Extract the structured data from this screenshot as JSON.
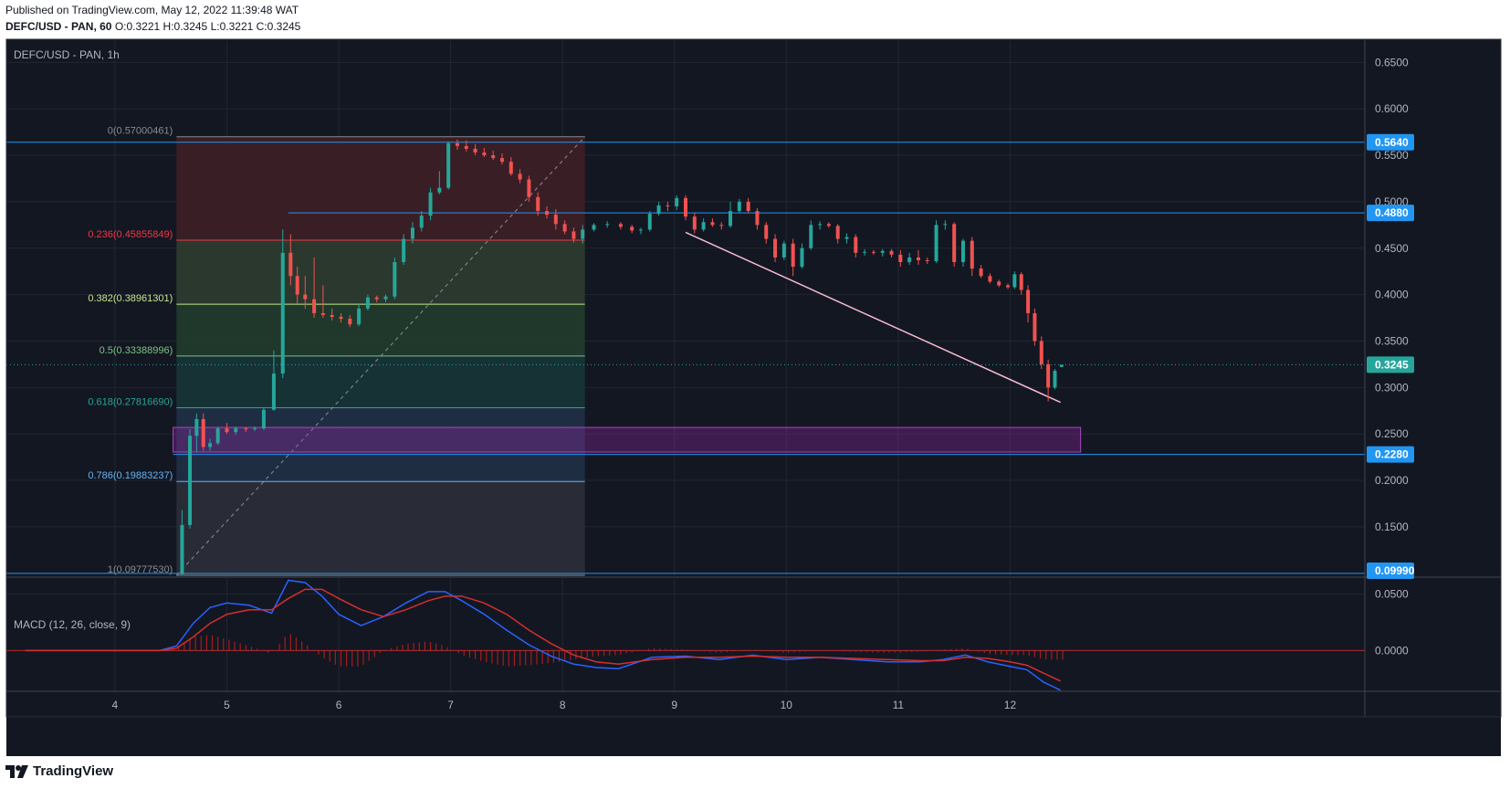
{
  "header": {
    "published": "Published on TradingView.com, May 12, 2022 11:39:48 WAT",
    "ohlc_label": "DEFC/USD - PAN, 60",
    "o": "O:0.3221",
    "h": "H:0.3245",
    "l": "L:0.3221",
    "c": "C:0.3245"
  },
  "logo": {
    "text": "TradingView",
    "icon": "tradingview-logo-icon"
  },
  "colors": {
    "bg": "#131722",
    "up": "#26a69a",
    "down": "#ef5350",
    "axis_text": "#b2b5be",
    "macd": "#2962ff",
    "signal": "#d32f2f",
    "price_tag": "#2196f3"
  },
  "chart_data": {
    "type": "candlestick",
    "title": "DEFC/USD - PAN, 1h",
    "x_ticks": [
      "4",
      "5",
      "6",
      "7",
      "8",
      "9",
      "10",
      "11",
      "12"
    ],
    "x_tick_days": [
      4,
      5,
      6,
      7,
      8,
      9,
      10,
      11,
      12
    ],
    "x_range_days": [
      3.03,
      15.17
    ],
    "ylim": [
      0.0978,
      0.6749
    ],
    "y_ticks": [
      "0.6500",
      "0.6000",
      "0.5500",
      "0.5000",
      "0.4500",
      "0.4000",
      "0.3500",
      "0.3000",
      "0.2500",
      "0.2000",
      "0.1500"
    ],
    "y_tick_values": [
      0.65,
      0.6,
      0.55,
      0.5,
      0.45,
      0.4,
      0.35,
      0.3,
      0.25,
      0.2,
      0.15
    ],
    "price_tags": [
      {
        "label": "0.5640",
        "value": 0.564
      },
      {
        "label": "0.4880",
        "value": 0.488
      },
      {
        "label": "0.3245",
        "value": 0.3245,
        "current": true
      },
      {
        "label": "0.2280",
        "value": 0.228
      },
      {
        "label": "0.09990",
        "value": 0.0999
      }
    ],
    "fibonacci": {
      "start_day": 4.55,
      "end_day": 8.2,
      "levels": [
        {
          "label": "0(0.57000461)",
          "value": 0.57000461,
          "color": "#8a8a8a",
          "fill": "#3b1f27"
        },
        {
          "label": "0.236(0.45855849)",
          "value": 0.45855849,
          "color": "#f23645",
          "fill": "#2c3a2f"
        },
        {
          "label": "0.382(0.38961301)",
          "value": 0.38961301,
          "color": "#c4e88a",
          "fill": "#203a2c"
        },
        {
          "label": "0.5(0.33388996)",
          "value": 0.33388996,
          "color": "#7bc47f",
          "fill": "#173436"
        },
        {
          "label": "0.618(0.27816690)",
          "value": 0.2781669,
          "color": "#26a69a",
          "fill": "#1f2e44"
        },
        {
          "label": "0.786(0.19883237)",
          "value": 0.19883237,
          "color": "#64b5f6",
          "fill": "#2a2d39"
        },
        {
          "label": "1(0.09777530)",
          "value": 0.0977753,
          "color": "#8a8a8a",
          "fill": null
        }
      ]
    },
    "zone": {
      "from_day": 4.52,
      "to_day": 12.63,
      "low": 0.2305,
      "high": 0.257
    },
    "trendline": {
      "from": [
        9.1,
        0.467
      ],
      "to": [
        12.45,
        0.284
      ]
    },
    "candles_ohlc": [
      [
        4.6,
        0.099,
        0.168,
        0.099,
        0.152
      ],
      [
        4.67,
        0.152,
        0.255,
        0.148,
        0.248
      ],
      [
        4.73,
        0.248,
        0.272,
        0.231,
        0.266
      ],
      [
        4.79,
        0.266,
        0.272,
        0.232,
        0.236
      ],
      [
        4.85,
        0.236,
        0.245,
        0.232,
        0.24
      ],
      [
        4.92,
        0.24,
        0.258,
        0.238,
        0.256
      ],
      [
        5.0,
        0.256,
        0.262,
        0.25,
        0.252
      ],
      [
        5.08,
        0.252,
        0.258,
        0.249,
        0.256
      ],
      [
        5.17,
        0.256,
        0.257,
        0.252,
        0.255
      ],
      [
        5.25,
        0.255,
        0.258,
        0.253,
        0.256
      ],
      [
        5.33,
        0.256,
        0.278,
        0.254,
        0.276
      ],
      [
        5.42,
        0.276,
        0.34,
        0.275,
        0.315
      ],
      [
        5.5,
        0.315,
        0.47,
        0.31,
        0.445
      ],
      [
        5.57,
        0.445,
        0.465,
        0.41,
        0.42
      ],
      [
        5.63,
        0.42,
        0.43,
        0.39,
        0.4
      ],
      [
        5.7,
        0.4,
        0.42,
        0.385,
        0.395
      ],
      [
        5.78,
        0.395,
        0.44,
        0.375,
        0.38
      ],
      [
        5.86,
        0.38,
        0.41,
        0.375,
        0.378
      ],
      [
        5.94,
        0.378,
        0.385,
        0.372,
        0.376
      ],
      [
        6.02,
        0.376,
        0.38,
        0.37,
        0.374
      ],
      [
        6.1,
        0.374,
        0.378,
        0.365,
        0.368
      ],
      [
        6.18,
        0.368,
        0.39,
        0.366,
        0.385
      ],
      [
        6.26,
        0.385,
        0.4,
        0.383,
        0.397
      ],
      [
        6.34,
        0.397,
        0.399,
        0.392,
        0.395
      ],
      [
        6.42,
        0.395,
        0.4,
        0.392,
        0.398
      ],
      [
        6.5,
        0.398,
        0.44,
        0.395,
        0.435
      ],
      [
        6.58,
        0.435,
        0.465,
        0.432,
        0.46
      ],
      [
        6.66,
        0.46,
        0.478,
        0.455,
        0.472
      ],
      [
        6.74,
        0.472,
        0.49,
        0.468,
        0.485
      ],
      [
        6.82,
        0.485,
        0.515,
        0.48,
        0.51
      ],
      [
        6.9,
        0.51,
        0.533,
        0.508,
        0.515
      ],
      [
        6.98,
        0.515,
        0.565,
        0.513,
        0.563
      ],
      [
        7.06,
        0.563,
        0.567,
        0.556,
        0.56
      ],
      [
        7.14,
        0.56,
        0.566,
        0.554,
        0.557
      ],
      [
        7.22,
        0.557,
        0.562,
        0.55,
        0.553
      ],
      [
        7.3,
        0.553,
        0.558,
        0.548,
        0.55
      ],
      [
        7.38,
        0.55,
        0.555,
        0.545,
        0.547
      ],
      [
        7.46,
        0.547,
        0.552,
        0.54,
        0.543
      ],
      [
        7.54,
        0.543,
        0.548,
        0.528,
        0.53
      ],
      [
        7.62,
        0.53,
        0.535,
        0.52,
        0.524
      ],
      [
        7.7,
        0.524,
        0.528,
        0.5,
        0.505
      ],
      [
        7.78,
        0.505,
        0.51,
        0.485,
        0.49
      ],
      [
        7.86,
        0.49,
        0.495,
        0.482,
        0.486
      ],
      [
        7.94,
        0.486,
        0.492,
        0.47,
        0.476
      ],
      [
        8.02,
        0.476,
        0.48,
        0.465,
        0.468
      ],
      [
        8.1,
        0.468,
        0.472,
        0.456,
        0.46
      ],
      [
        8.18,
        0.46,
        0.475,
        0.455,
        0.47
      ],
      [
        8.28,
        0.47,
        0.477,
        0.468,
        0.475
      ],
      [
        8.4,
        0.475,
        0.479,
        0.472,
        0.476
      ],
      [
        8.52,
        0.476,
        0.478,
        0.47,
        0.473
      ],
      [
        8.62,
        0.473,
        0.475,
        0.466,
        0.469
      ],
      [
        8.7,
        0.469,
        0.472,
        0.465,
        0.47
      ],
      [
        8.78,
        0.47,
        0.49,
        0.468,
        0.487
      ],
      [
        8.86,
        0.487,
        0.5,
        0.485,
        0.496
      ],
      [
        8.94,
        0.496,
        0.5,
        0.49,
        0.495
      ],
      [
        9.02,
        0.495,
        0.507,
        0.491,
        0.504
      ],
      [
        9.1,
        0.504,
        0.507,
        0.48,
        0.484
      ],
      [
        9.18,
        0.484,
        0.488,
        0.466,
        0.47
      ],
      [
        9.26,
        0.47,
        0.482,
        0.468,
        0.478
      ],
      [
        9.34,
        0.478,
        0.482,
        0.473,
        0.475
      ],
      [
        9.42,
        0.475,
        0.478,
        0.47,
        0.474
      ],
      [
        9.5,
        0.474,
        0.5,
        0.472,
        0.49
      ],
      [
        9.58,
        0.49,
        0.503,
        0.488,
        0.5
      ],
      [
        9.66,
        0.5,
        0.504,
        0.488,
        0.49
      ],
      [
        9.74,
        0.49,
        0.493,
        0.47,
        0.475
      ],
      [
        9.82,
        0.475,
        0.478,
        0.455,
        0.46
      ],
      [
        9.9,
        0.46,
        0.465,
        0.435,
        0.44
      ],
      [
        9.98,
        0.44,
        0.458,
        0.437,
        0.455
      ],
      [
        10.06,
        0.455,
        0.46,
        0.42,
        0.43
      ],
      [
        10.14,
        0.43,
        0.455,
        0.428,
        0.45
      ],
      [
        10.22,
        0.45,
        0.48,
        0.448,
        0.475
      ],
      [
        10.3,
        0.475,
        0.479,
        0.47,
        0.476
      ],
      [
        10.38,
        0.476,
        0.478,
        0.472,
        0.474
      ],
      [
        10.46,
        0.474,
        0.476,
        0.455,
        0.46
      ],
      [
        10.54,
        0.46,
        0.466,
        0.455,
        0.462
      ],
      [
        10.62,
        0.462,
        0.465,
        0.44,
        0.445
      ],
      [
        10.7,
        0.445,
        0.449,
        0.442,
        0.446
      ],
      [
        10.78,
        0.446,
        0.448,
        0.443,
        0.445
      ],
      [
        10.86,
        0.445,
        0.449,
        0.441,
        0.447
      ],
      [
        10.94,
        0.447,
        0.449,
        0.44,
        0.443
      ],
      [
        11.02,
        0.443,
        0.448,
        0.43,
        0.435
      ],
      [
        11.1,
        0.435,
        0.445,
        0.432,
        0.44
      ],
      [
        11.18,
        0.44,
        0.448,
        0.432,
        0.437
      ],
      [
        11.26,
        0.437,
        0.44,
        0.433,
        0.436
      ],
      [
        11.34,
        0.436,
        0.48,
        0.434,
        0.475
      ],
      [
        11.42,
        0.475,
        0.48,
        0.47,
        0.476
      ],
      [
        11.5,
        0.476,
        0.478,
        0.43,
        0.435
      ],
      [
        11.58,
        0.435,
        0.46,
        0.43,
        0.458
      ],
      [
        11.66,
        0.458,
        0.462,
        0.42,
        0.428
      ],
      [
        11.74,
        0.428,
        0.432,
        0.418,
        0.42
      ],
      [
        11.82,
        0.42,
        0.423,
        0.412,
        0.414
      ],
      [
        11.9,
        0.414,
        0.416,
        0.408,
        0.41
      ],
      [
        11.98,
        0.41,
        0.412,
        0.406,
        0.408
      ],
      [
        12.04,
        0.408,
        0.425,
        0.406,
        0.422
      ],
      [
        12.1,
        0.422,
        0.424,
        0.4,
        0.405
      ],
      [
        12.16,
        0.405,
        0.41,
        0.37,
        0.38
      ],
      [
        12.22,
        0.38,
        0.385,
        0.345,
        0.35
      ],
      [
        12.28,
        0.35,
        0.355,
        0.32,
        0.325
      ],
      [
        12.34,
        0.325,
        0.33,
        0.285,
        0.3
      ],
      [
        12.4,
        0.3,
        0.32,
        0.298,
        0.318
      ],
      [
        12.46,
        0.3221,
        0.3245,
        0.3221,
        0.3245
      ]
    ],
    "macd": {
      "label": "MACD (12, 26, close, 9)",
      "ylim": [
        -0.036,
        0.064
      ],
      "y_ticks": [
        "0.0500",
        "0.0000"
      ],
      "y_tick_values": [
        0.05,
        0.0
      ],
      "days": [
        3.2,
        4.4,
        4.55,
        4.7,
        4.85,
        5.0,
        5.2,
        5.4,
        5.55,
        5.7,
        5.85,
        6.0,
        6.2,
        6.4,
        6.6,
        6.8,
        6.95,
        7.1,
        7.3,
        7.5,
        7.7,
        7.9,
        8.1,
        8.3,
        8.5,
        8.8,
        9.1,
        9.4,
        9.7,
        10.0,
        10.3,
        10.6,
        10.9,
        11.2,
        11.4,
        11.6,
        11.8,
        12.0,
        12.15,
        12.3,
        12.45
      ],
      "macd_line": [
        0,
        0,
        0.004,
        0.024,
        0.038,
        0.042,
        0.04,
        0.033,
        0.062,
        0.06,
        0.048,
        0.032,
        0.022,
        0.03,
        0.042,
        0.052,
        0.052,
        0.044,
        0.032,
        0.018,
        0.005,
        -0.005,
        -0.012,
        -0.015,
        -0.016,
        -0.006,
        -0.005,
        -0.008,
        -0.004,
        -0.008,
        -0.006,
        -0.008,
        -0.01,
        -0.01,
        -0.008,
        -0.004,
        -0.01,
        -0.014,
        -0.017,
        -0.028,
        -0.035
      ],
      "signal_line": [
        0,
        0,
        0.002,
        0.012,
        0.024,
        0.032,
        0.036,
        0.036,
        0.046,
        0.054,
        0.054,
        0.046,
        0.036,
        0.03,
        0.036,
        0.044,
        0.048,
        0.048,
        0.042,
        0.032,
        0.018,
        0.006,
        -0.004,
        -0.01,
        -0.012,
        -0.008,
        -0.006,
        -0.006,
        -0.005,
        -0.006,
        -0.006,
        -0.007,
        -0.008,
        -0.009,
        -0.009,
        -0.006,
        -0.007,
        -0.01,
        -0.013,
        -0.02,
        -0.027
      ]
    }
  }
}
